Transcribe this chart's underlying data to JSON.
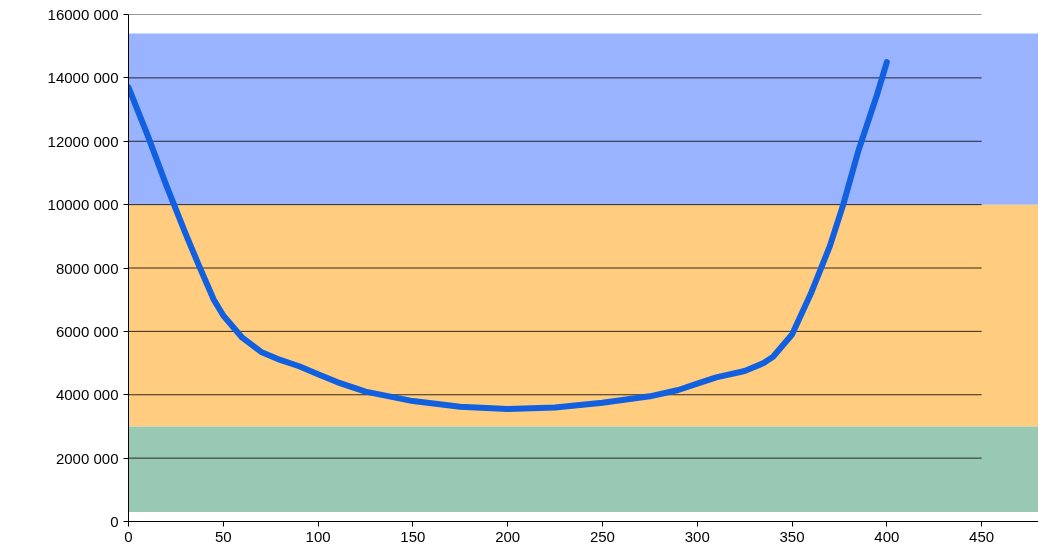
{
  "chart_data": {
    "type": "line",
    "xlim": [
      0,
      480
    ],
    "xticks": [
      0,
      50,
      100,
      150,
      200,
      250,
      300,
      350,
      400,
      450
    ],
    "ylim": [
      0,
      16000000
    ],
    "yticks": [
      {
        "value": 0,
        "label": "0"
      },
      {
        "value": 2000000,
        "label": "2000 000"
      },
      {
        "value": 4000000,
        "label": "4000 000"
      },
      {
        "value": 6000000,
        "label": "6000 000"
      },
      {
        "value": 8000000,
        "label": "8000 000"
      },
      {
        "value": 10000000,
        "label": "10000 000"
      },
      {
        "value": 12000000,
        "label": "12000 000"
      },
      {
        "value": 14000000,
        "label": "14000 000"
      },
      {
        "value": 16000000,
        "label": "16000 000"
      }
    ],
    "grid": "y",
    "line_style": "solid",
    "series": [
      {
        "color": "#1060e0",
        "x": [
          0,
          10,
          20,
          30,
          37,
          45,
          50,
          60,
          70,
          80,
          90,
          100,
          110,
          125,
          150,
          175,
          200,
          225,
          250,
          275,
          290,
          300,
          310,
          325,
          335,
          340,
          350,
          360,
          370,
          377,
          385,
          395,
          400
        ],
        "values": [
          13700000,
          12200000,
          10600000,
          9100000,
          8100000,
          7000000,
          6500000,
          5800000,
          5350000,
          5100000,
          4900000,
          4650000,
          4400000,
          4100000,
          3800000,
          3620000,
          3550000,
          3600000,
          3750000,
          3950000,
          4150000,
          4350000,
          4550000,
          4750000,
          5000000,
          5200000,
          5900000,
          7200000,
          8700000,
          10000000,
          11700000,
          13500000,
          14500000
        ]
      }
    ],
    "bands": [
      {
        "axis": "y",
        "from": 10000000,
        "to": 15400000,
        "color": "#99b3ff"
      },
      {
        "axis": "y",
        "from": 3000000,
        "to": 10000000,
        "color": "#ffcc80"
      },
      {
        "axis": "y",
        "from": 300000,
        "to": 3000000,
        "color": "#99c9b3"
      }
    ]
  }
}
